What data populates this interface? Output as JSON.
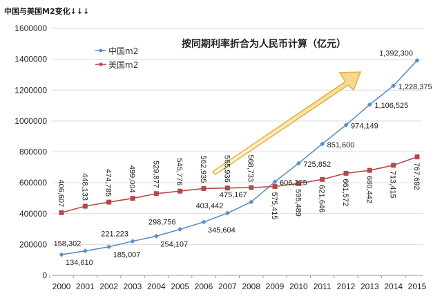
{
  "title": "中国与美国M2变化↓↓↓",
  "chart_data": {
    "type": "line",
    "title": "中国与美国M2变化↓↓↓",
    "subtitle": "按同期利率折合为人民币计算（亿元）",
    "categories": [
      "2000",
      "2001",
      "2002",
      "2003",
      "2004",
      "2005",
      "2006",
      "2007",
      "2008",
      "2009",
      "2010",
      "2011",
      "2012",
      "2013",
      "2014",
      "2015"
    ],
    "ylim": [
      0,
      1600000
    ],
    "yticks": [
      "0",
      "200000",
      "400000",
      "600000",
      "800000",
      "1000000",
      "1200000",
      "1400000",
      "1600000"
    ],
    "grid": true,
    "legend_position": "top-left",
    "series": [
      {
        "name": "中国m2",
        "color": "#5b8fc7",
        "marker": "diamond",
        "values": [
          134610,
          158302,
          185007,
          221223,
          254107,
          298756,
          345604,
          403442,
          475167,
          606225,
          725852,
          851600,
          974149,
          1106525,
          1228375,
          1392300
        ],
        "labels": [
          "134,610",
          "158,302",
          "185,007",
          "221,223",
          "254,107",
          "298,756",
          "345,604",
          "403,442",
          "475,167",
          "606,225",
          "725,852",
          "851,600",
          "974,149",
          "1,106,525",
          "1,228,375",
          "1,392,300"
        ]
      },
      {
        "name": "美国m2",
        "color": "#b5484a",
        "marker": "square",
        "values": [
          406607,
          448133,
          474785,
          499004,
          529877,
          545776,
          562935,
          565936,
          568733,
          575415,
          595489,
          621646,
          661572,
          680442,
          713415,
          767692
        ],
        "labels": [
          "406,607",
          "448,133",
          "474,785",
          "499,004",
          "529,877",
          "545,776",
          "562,935",
          "565,936",
          "568,733",
          "575,415",
          "595,489",
          "621,646",
          "661,572",
          "680,442",
          "713,415",
          "767,692"
        ]
      }
    ],
    "annotation_arrow_color": "#e0b040"
  }
}
